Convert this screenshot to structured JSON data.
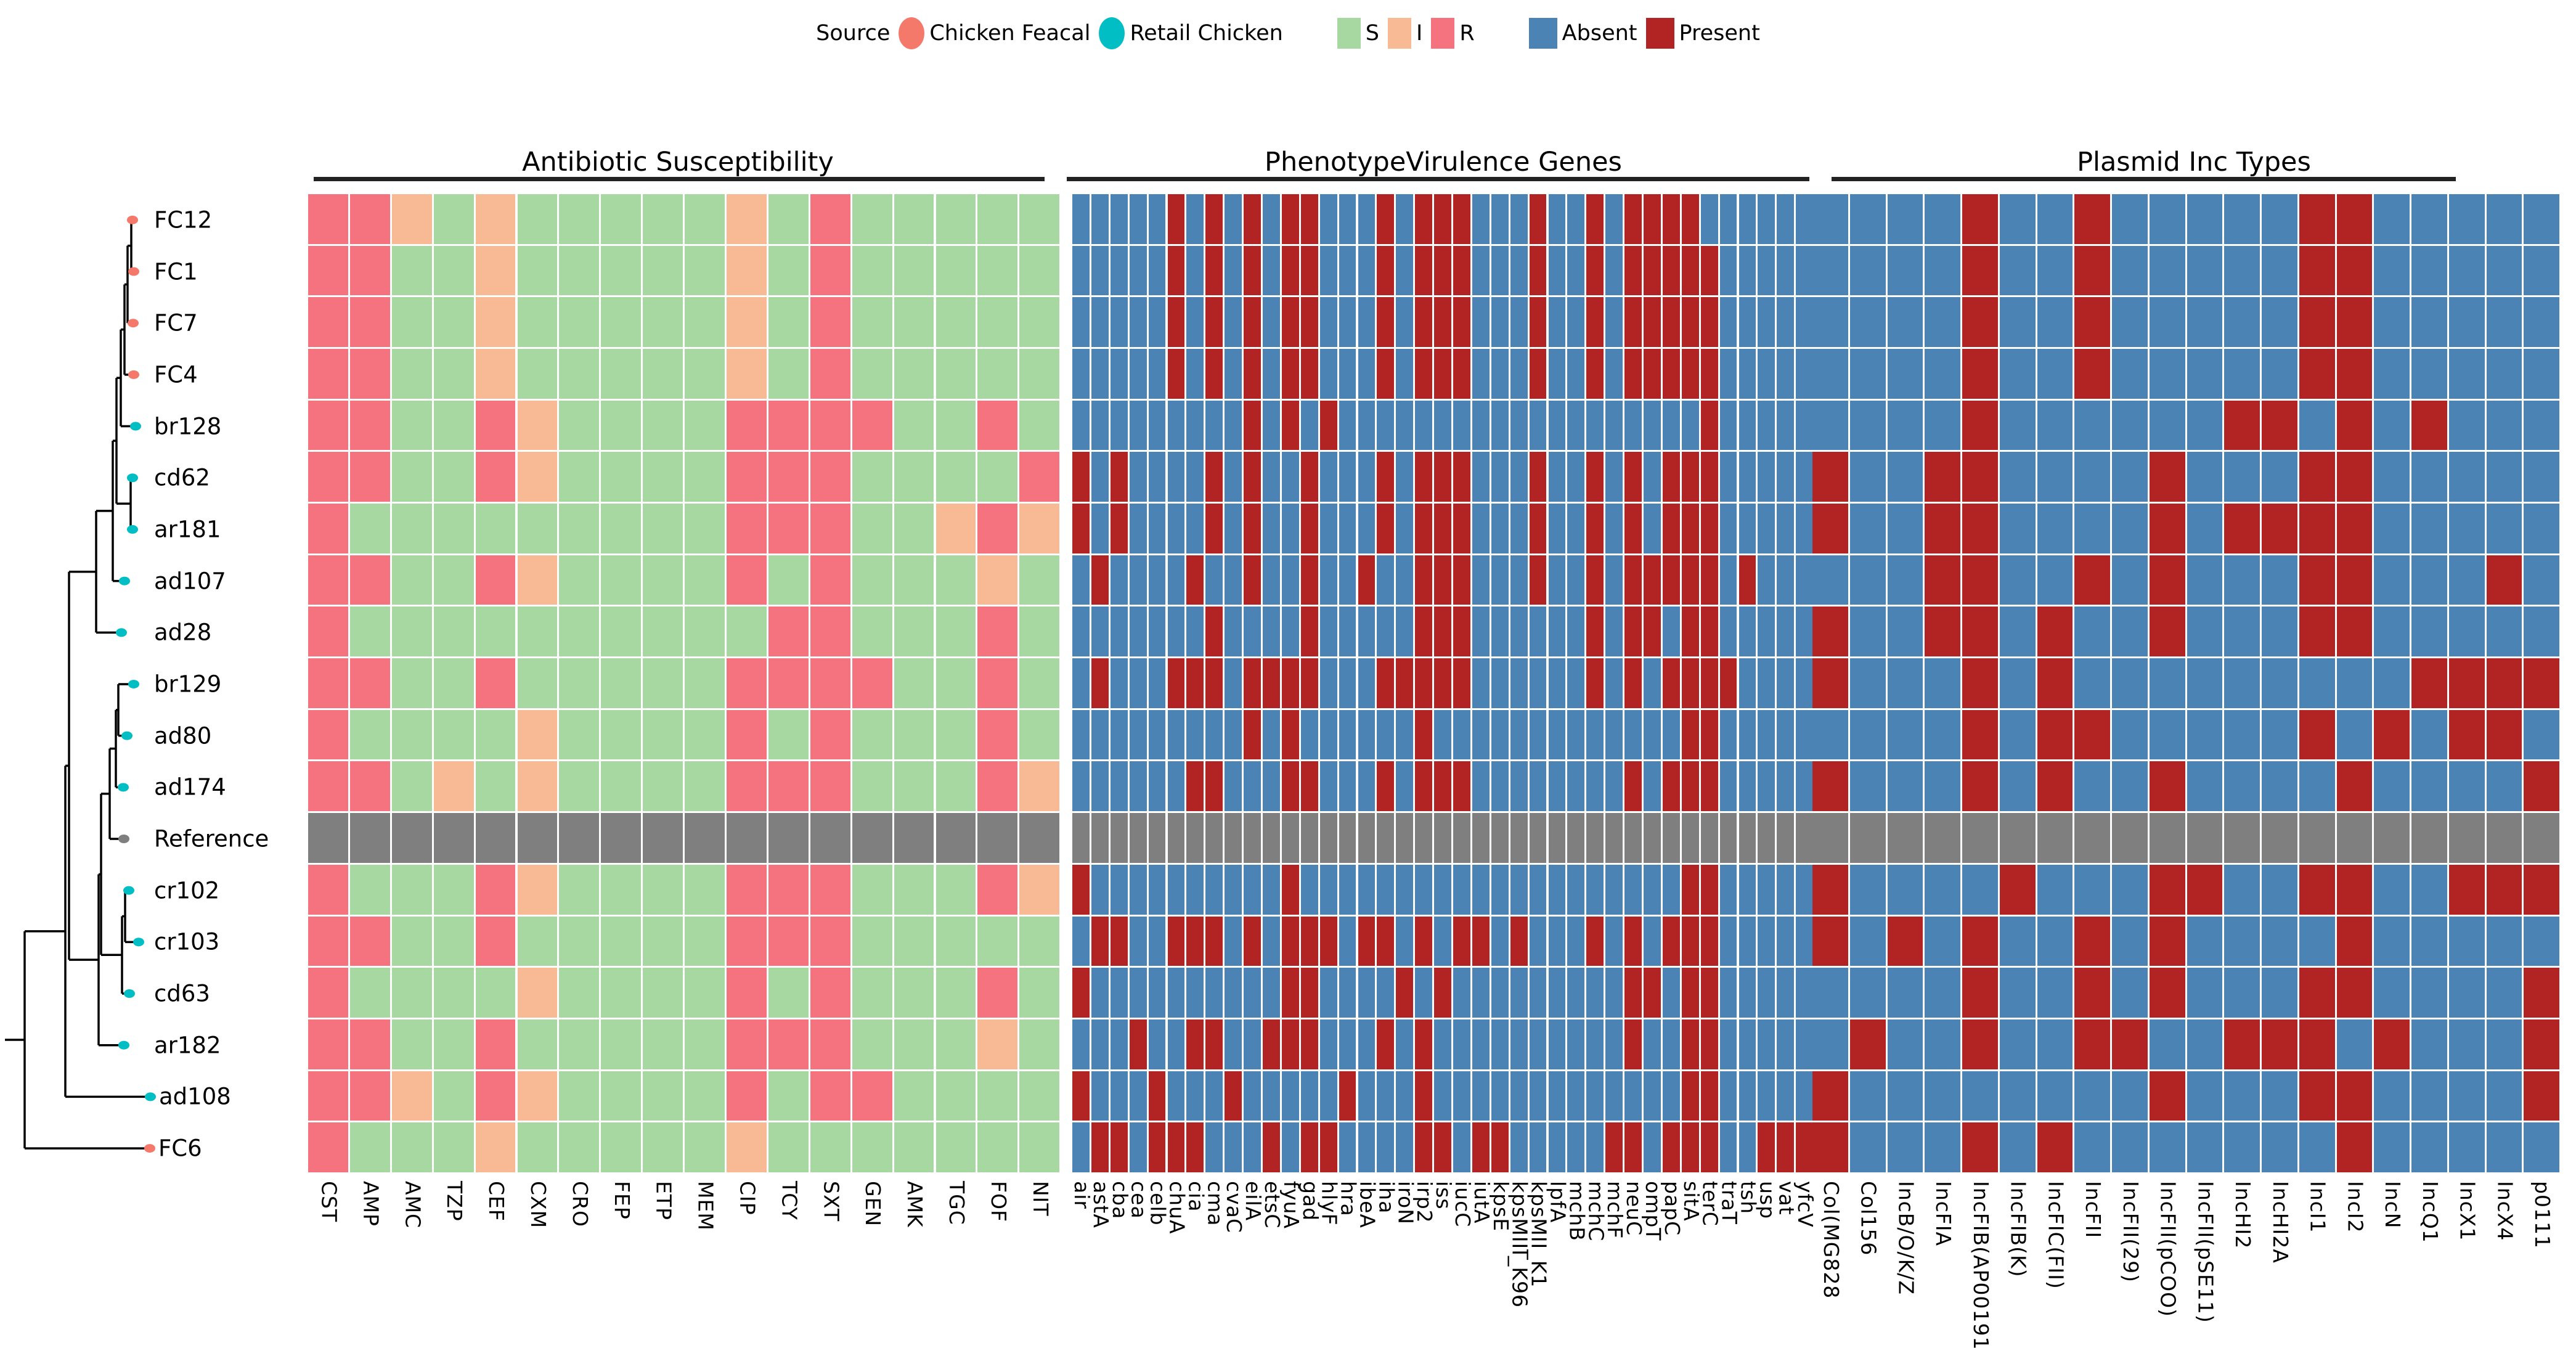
{
  "legend": {
    "source_label": "Source",
    "source_items": [
      {
        "label": "Chicken Feacal",
        "color": "#F4796B"
      },
      {
        "label": "Retail Chicken",
        "color": "#00BEC4"
      }
    ],
    "sir_items": [
      {
        "label": "S",
        "color": "#A8D8A2"
      },
      {
        "label": "I",
        "color": "#F8BA94"
      },
      {
        "label": "R",
        "color": "#F4737E"
      }
    ],
    "presence_items": [
      {
        "label": "Absent",
        "color": "#4B83B5"
      },
      {
        "label": "Present",
        "color": "#B12423"
      }
    ]
  },
  "chart_data": {
    "type": "heatmap",
    "panels": [
      {
        "title": "Antibiotic Susceptibility",
        "key": "abx",
        "legend_states": {
          "S": "#A8D8A2",
          "I": "#F8BA94",
          "R": "#F4737E",
          "G": "#7F7F7F"
        },
        "columns": [
          "CST",
          "AMP",
          "AMC",
          "TZP",
          "CEF",
          "CXM",
          "CRO",
          "FEP",
          "ETP",
          "MEM",
          "CIP",
          "TCY",
          "SXT",
          "GEN",
          "AMK",
          "TGC",
          "FOF",
          "NIT"
        ]
      },
      {
        "title": "PhenotypeVirulence Genes",
        "key": "vir",
        "legend_states": {
          "0": "#4B83B5",
          "1": "#B12423",
          "g": "#7F7F7F"
        },
        "columns": [
          "air",
          "astA",
          "cba",
          "cea",
          "celb",
          "chuA",
          "cia",
          "cma",
          "cvaC",
          "eilA",
          "etsC",
          "fyuA",
          "gad",
          "hlyF",
          "hra",
          "ibeA",
          "iha",
          "iroN",
          "irp2",
          "iss",
          "iucC",
          "iutA",
          "kpsE",
          "kpsMIII_K96",
          "kpsMII_K1",
          "lpfA",
          "mchB",
          "mchC",
          "mchF",
          "neuC",
          "ompT",
          "papC",
          "sitA",
          "terC",
          "traT",
          "tsh",
          "usp",
          "vat",
          "yfcV"
        ]
      },
      {
        "title": "Plasmid Inc Types",
        "key": "inc",
        "legend_states": {
          "0": "#4B83B5",
          "1": "#B12423",
          "g": "#7F7F7F"
        },
        "columns": [
          "Col(MG828",
          "Col156",
          "IncB/O/K/Z",
          "IncFIA",
          "IncFIB(AP00191",
          "IncFIB(K)",
          "IncFIC(FII)",
          "IncFII",
          "IncFII(29)",
          "IncFII(pCOO)",
          "IncFII(pSE11)",
          "IncHI2",
          "IncHI2A",
          "IncI1",
          "IncI2",
          "IncN",
          "IncQ1",
          "IncX1",
          "IncX4",
          "p0111"
        ]
      }
    ],
    "rows": [
      {
        "name": "FC12",
        "source": "chicken-feacal",
        "abx": "RRISISSSSSISRSSSSS",
        "vir": "000001010101100010111000100101111000000",
        "inc": "00001001000001100000"
      },
      {
        "name": "FC1",
        "source": "chicken-feacal",
        "abx": "RRSSISSSSSISRSSSSS",
        "vir": "000001010101100010111000100101111100000",
        "inc": "00001001000001100000"
      },
      {
        "name": "FC7",
        "source": "chicken-feacal",
        "abx": "RRSSISSSSSISRSSSSS",
        "vir": "000001010101100010111000100101111100000",
        "inc": "00001001000001100000"
      },
      {
        "name": "FC4",
        "source": "chicken-feacal",
        "abx": "RRSSISSSSSISRSSSSS",
        "vir": "000001010101100010111000100101111100000",
        "inc": "00001001000001100000"
      },
      {
        "name": "br128",
        "source": "retail-chicken",
        "abx": "RRSSRISSSSRRRRSSRS",
        "vir": "000000000101010000000000000000000100000",
        "inc": "00001000000110101000"
      },
      {
        "name": "cd62",
        "source": "retail-chicken",
        "abx": "RRSSRISSSSRRRSSSSR",
        "vir": "101000010100100010111000100101011100000",
        "inc": "10011000010001100000"
      },
      {
        "name": "ar181",
        "source": "retail-chicken",
        "abx": "RSSSSSSSSSRRRSSIRI",
        "vir": "101000010100100010111000100101011100000",
        "inc": "10011000010111100000"
      },
      {
        "name": "ad107",
        "source": "retail-chicken",
        "abx": "RRSSRISSSSRSRSSSIS",
        "vir": "010000100100100100111000100101111101000",
        "inc": "00011001010001100010"
      },
      {
        "name": "ad28",
        "source": "retail-chicken",
        "abx": "RSSSSSSSSSSRRSSSRS",
        "vir": "000000010000100000111000000101101100000",
        "inc": "10011010010001100000"
      },
      {
        "name": "br129",
        "source": "retail-chicken",
        "abx": "RRSSRSSSSSRRRRSSRS",
        "vir": "010001110111100011111000000101011110000",
        "inc": "10001010000000001111"
      },
      {
        "name": "ad80",
        "source": "retail-chicken",
        "abx": "RSSSSISSSSRSRSSSRS",
        "vir": "000000000101000000100000000000001100000",
        "inc": "00001011000001010110"
      },
      {
        "name": "ad174",
        "source": "retail-chicken",
        "abx": "RRSISISSSSRRRSSSRI",
        "vir": "000000110001100010111000000001011100000",
        "inc": "10001010010000100001"
      },
      {
        "name": "Reference",
        "source": "reference",
        "abx": "GGGGGGGGGGGGGGGGGG",
        "vir": "ggggggggggggggggggggggggggggggggggggggg",
        "inc": "gggggggggggggggggggg"
      },
      {
        "name": "cr102",
        "source": "retail-chicken",
        "abx": "RSSSRISSSSRRRSSSRI",
        "vir": "100000000001000000000000000000001100000",
        "inc": "10000100011001100111"
      },
      {
        "name": "cr103",
        "source": "retail-chicken",
        "abx": "RRSSRSSSSSRRRSSSSS",
        "vir": "011001110101110110101101000101011100000",
        "inc": "10101001010000100000"
      },
      {
        "name": "cd63",
        "source": "retail-chicken",
        "abx": "RSSSSISSSSRSRSSSRS",
        "vir": "100000000001100001010000000001101100000",
        "inc": "00001001010001100001"
      },
      {
        "name": "ar182",
        "source": "retail-chicken",
        "abx": "RRSSRSSSSSRRRSSSIS",
        "vir": "000100110011100010100000000001001100000",
        "inc": "01001001100111010001"
      },
      {
        "name": "ad108",
        "source": "retail-chicken",
        "abx": "RRISRISSSSRSRRSSSS",
        "vir": "100010001000001000100000000000001100000",
        "inc": "10000000010001100001"
      },
      {
        "name": "FC6",
        "source": "chicken-feacal",
        "abx": "RSSSISSSSSISSSSSSS",
        "vir": "011011100010110000110110000011011100111",
        "inc": "10001010000000100000"
      }
    ],
    "tip_colors": {
      "chicken-feacal": "#F4796B",
      "retail-chicken": "#00BEC4",
      "reference": "#7F7F7F"
    },
    "layout_hint": {
      "tree_position": "left",
      "legend_position": "top-center",
      "grid": false
    }
  }
}
